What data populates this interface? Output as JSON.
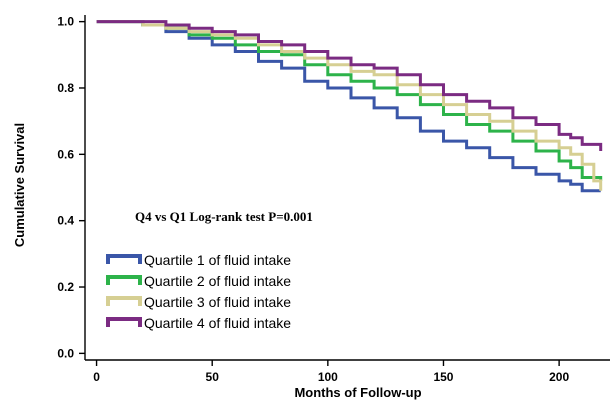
{
  "chart_data": {
    "type": "line",
    "title": "",
    "xlabel": "Months of Follow-up",
    "ylabel": "Cumulative Survival",
    "xlim": [
      -5,
      222
    ],
    "ylim": [
      -0.02,
      1.02
    ],
    "x_ticks": [
      0,
      50,
      100,
      150,
      200
    ],
    "y_ticks": [
      0.0,
      0.2,
      0.4,
      0.6,
      0.8,
      1.0
    ],
    "y_tick_labels": [
      "0.0",
      "0.2",
      "0.4",
      "0.6",
      "0.8",
      "1.0"
    ],
    "annotation": "Q4 vs Q1 Log-rank test P=0.001",
    "legend_position": "left",
    "series": [
      {
        "name": "Quartile 1 of fluid intake",
        "color": "#3a56a8",
        "points": [
          [
            0,
            1.0
          ],
          [
            10,
            1.0
          ],
          [
            20,
            0.99
          ],
          [
            30,
            0.97
          ],
          [
            40,
            0.95
          ],
          [
            50,
            0.93
          ],
          [
            60,
            0.91
          ],
          [
            70,
            0.88
          ],
          [
            80,
            0.86
          ],
          [
            90,
            0.82
          ],
          [
            100,
            0.8
          ],
          [
            110,
            0.77
          ],
          [
            120,
            0.74
          ],
          [
            130,
            0.71
          ],
          [
            140,
            0.67
          ],
          [
            150,
            0.64
          ],
          [
            160,
            0.62
          ],
          [
            170,
            0.59
          ],
          [
            180,
            0.56
          ],
          [
            190,
            0.54
          ],
          [
            200,
            0.52
          ],
          [
            205,
            0.51
          ],
          [
            210,
            0.49
          ],
          [
            218,
            0.49
          ]
        ]
      },
      {
        "name": "Quartile 2 of fluid intake",
        "color": "#2db34a",
        "points": [
          [
            0,
            1.0
          ],
          [
            10,
            1.0
          ],
          [
            20,
            0.99
          ],
          [
            30,
            0.98
          ],
          [
            40,
            0.96
          ],
          [
            50,
            0.95
          ],
          [
            60,
            0.93
          ],
          [
            70,
            0.91
          ],
          [
            80,
            0.9
          ],
          [
            90,
            0.87
          ],
          [
            100,
            0.84
          ],
          [
            110,
            0.82
          ],
          [
            120,
            0.8
          ],
          [
            130,
            0.78
          ],
          [
            140,
            0.75
          ],
          [
            150,
            0.72
          ],
          [
            160,
            0.69
          ],
          [
            170,
            0.67
          ],
          [
            180,
            0.64
          ],
          [
            190,
            0.61
          ],
          [
            200,
            0.58
          ],
          [
            205,
            0.56
          ],
          [
            210,
            0.53
          ],
          [
            218,
            0.52
          ]
        ]
      },
      {
        "name": "Quartile 3 of fluid intake",
        "color": "#d6cf93",
        "points": [
          [
            0,
            1.0
          ],
          [
            10,
            1.0
          ],
          [
            20,
            0.99
          ],
          [
            30,
            0.98
          ],
          [
            40,
            0.97
          ],
          [
            50,
            0.96
          ],
          [
            60,
            0.95
          ],
          [
            70,
            0.93
          ],
          [
            80,
            0.91
          ],
          [
            90,
            0.89
          ],
          [
            100,
            0.87
          ],
          [
            110,
            0.85
          ],
          [
            120,
            0.84
          ],
          [
            130,
            0.81
          ],
          [
            140,
            0.78
          ],
          [
            150,
            0.75
          ],
          [
            160,
            0.72
          ],
          [
            170,
            0.7
          ],
          [
            180,
            0.67
          ],
          [
            190,
            0.64
          ],
          [
            200,
            0.62
          ],
          [
            205,
            0.6
          ],
          [
            210,
            0.57
          ],
          [
            215,
            0.52
          ],
          [
            218,
            0.49
          ]
        ]
      },
      {
        "name": "Quartile 4 of fluid intake",
        "color": "#7b2b82",
        "points": [
          [
            0,
            1.0
          ],
          [
            10,
            1.0
          ],
          [
            20,
            1.0
          ],
          [
            30,
            0.99
          ],
          [
            40,
            0.98
          ],
          [
            50,
            0.97
          ],
          [
            60,
            0.96
          ],
          [
            70,
            0.94
          ],
          [
            80,
            0.93
          ],
          [
            90,
            0.91
          ],
          [
            100,
            0.89
          ],
          [
            110,
            0.87
          ],
          [
            120,
            0.86
          ],
          [
            130,
            0.84
          ],
          [
            140,
            0.81
          ],
          [
            150,
            0.78
          ],
          [
            160,
            0.76
          ],
          [
            170,
            0.74
          ],
          [
            180,
            0.71
          ],
          [
            190,
            0.69
          ],
          [
            200,
            0.66
          ],
          [
            205,
            0.65
          ],
          [
            210,
            0.63
          ],
          [
            218,
            0.61
          ]
        ]
      }
    ]
  }
}
